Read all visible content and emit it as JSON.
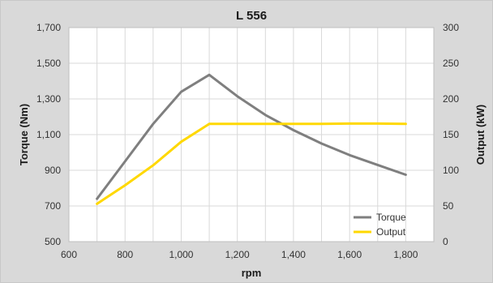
{
  "chart_data": {
    "type": "line",
    "title": "L 556",
    "xlabel": "rpm",
    "ylabel_left": "Torque (Nm)",
    "ylabel_right": "Output (kW)",
    "xlim": [
      600,
      1900
    ],
    "ylim_left": [
      500,
      1700
    ],
    "ylim_right": [
      0,
      300
    ],
    "x_ticks": [
      "600",
      "800",
      "1,000",
      "1,200",
      "1,400",
      "1,600",
      "1,800"
    ],
    "y_left_ticks": [
      "500",
      "700",
      "900",
      "1,100",
      "1,300",
      "1,500",
      "1,700"
    ],
    "y_right_ticks": [
      "0",
      "50",
      "100",
      "150",
      "200",
      "250",
      "300"
    ],
    "grid": true,
    "legend_position": "bottom-right",
    "series": [
      {
        "name": "Torque",
        "axis": "left",
        "color": "#7f7f7f",
        "x": [
          700,
          800,
          900,
          1000,
          1100,
          1200,
          1300,
          1400,
          1500,
          1600,
          1700,
          1800
        ],
        "y": [
          740,
          950,
          1160,
          1340,
          1435,
          1315,
          1210,
          1125,
          1050,
          985,
          930,
          875
        ]
      },
      {
        "name": "Output",
        "axis": "right",
        "color": "#ffd800",
        "x": [
          700,
          800,
          900,
          1000,
          1100,
          1200,
          1300,
          1400,
          1500,
          1600,
          1700,
          1800
        ],
        "y": [
          53,
          79,
          107,
          140,
          165,
          165,
          165,
          165,
          165,
          165.5,
          165.5,
          165
        ]
      }
    ]
  }
}
